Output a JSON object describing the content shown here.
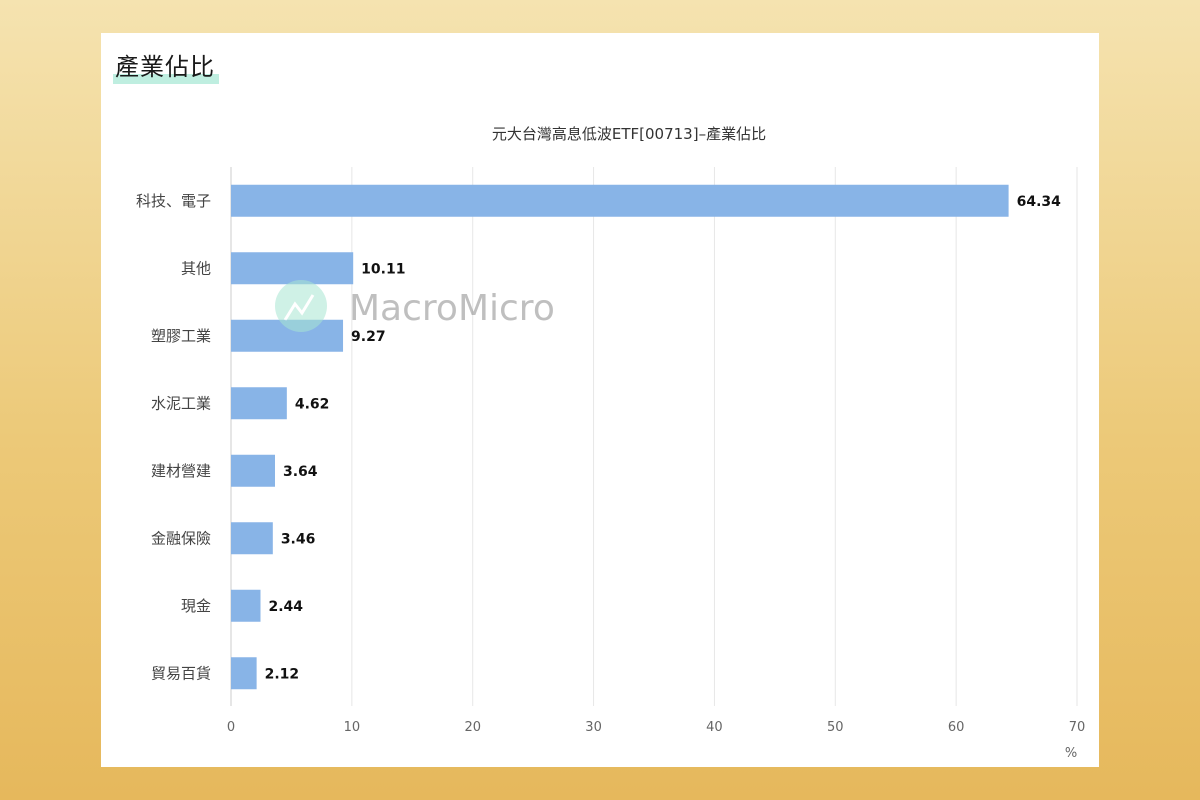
{
  "page": {
    "section_title": "產業佔比",
    "watermark": "MacroMicro"
  },
  "chart_data": {
    "type": "bar",
    "orientation": "horizontal",
    "title": "元大台灣高息低波ETF[00713]–產業佔比",
    "categories": [
      "科技、電子",
      "其他",
      "塑膠工業",
      "水泥工業",
      "建材營建",
      "金融保險",
      "現金",
      "貿易百貨"
    ],
    "values": [
      64.34,
      10.11,
      9.27,
      4.62,
      3.64,
      3.46,
      2.44,
      2.12
    ],
    "data_labels": [
      "64.34",
      "10.11",
      "9.27",
      "4.62",
      "3.64",
      "3.46",
      "2.44",
      "2.12"
    ],
    "xlim": [
      0,
      70
    ],
    "x_ticks": [
      0,
      10,
      20,
      30,
      40,
      50,
      60,
      70
    ],
    "x_unit": "%",
    "grid": true,
    "bar_color": "#88b4e7"
  }
}
